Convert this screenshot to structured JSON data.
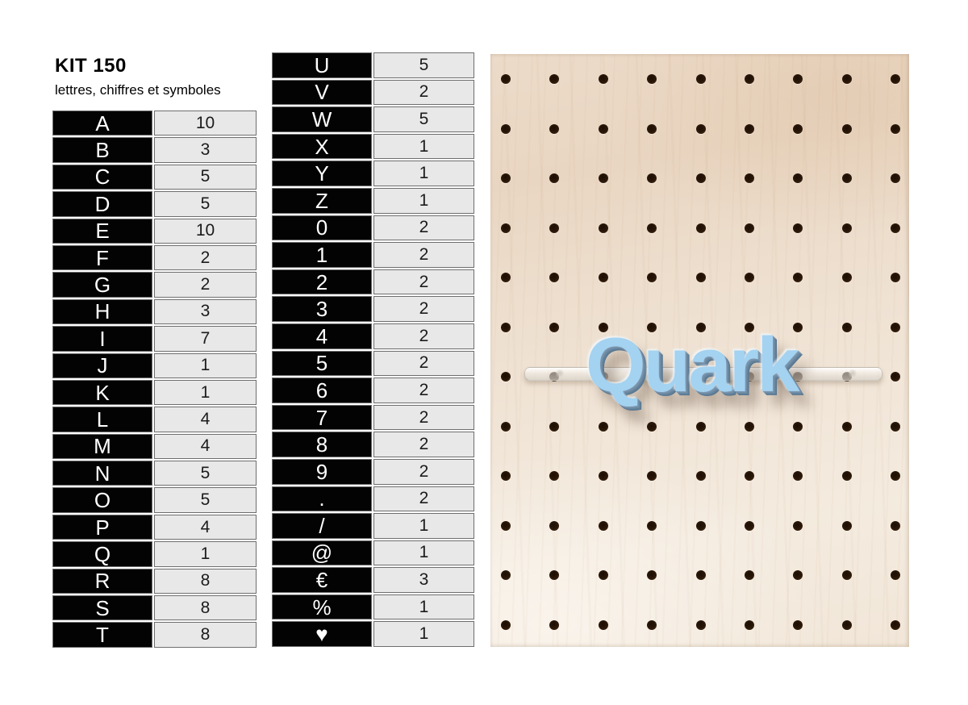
{
  "header": {
    "title": "KIT 150",
    "subtitle": "lettres, chiffres et symboles"
  },
  "table_left": {
    "rows": [
      {
        "symbol": "A",
        "qty": "10"
      },
      {
        "symbol": "B",
        "qty": "3"
      },
      {
        "symbol": "C",
        "qty": "5"
      },
      {
        "symbol": "D",
        "qty": "5"
      },
      {
        "symbol": "E",
        "qty": "10"
      },
      {
        "symbol": "F",
        "qty": "2"
      },
      {
        "symbol": "G",
        "qty": "2"
      },
      {
        "symbol": "H",
        "qty": "3"
      },
      {
        "symbol": "I",
        "qty": "7"
      },
      {
        "symbol": "J",
        "qty": "1"
      },
      {
        "symbol": "K",
        "qty": "1"
      },
      {
        "symbol": "L",
        "qty": "4"
      },
      {
        "symbol": "M",
        "qty": "4"
      },
      {
        "symbol": "N",
        "qty": "5"
      },
      {
        "symbol": "O",
        "qty": "5"
      },
      {
        "symbol": "P",
        "qty": "4"
      },
      {
        "symbol": "Q",
        "qty": "1"
      },
      {
        "symbol": "R",
        "qty": "8"
      },
      {
        "symbol": "S",
        "qty": "8"
      },
      {
        "symbol": "T",
        "qty": "8"
      }
    ]
  },
  "table_middle": {
    "rows": [
      {
        "symbol": "U",
        "qty": "5"
      },
      {
        "symbol": "V",
        "qty": "2"
      },
      {
        "symbol": "W",
        "qty": "5"
      },
      {
        "symbol": "X",
        "qty": "1"
      },
      {
        "symbol": "Y",
        "qty": "1"
      },
      {
        "symbol": "Z",
        "qty": "1"
      },
      {
        "symbol": "0",
        "qty": "2"
      },
      {
        "symbol": "1",
        "qty": "2"
      },
      {
        "symbol": "2",
        "qty": "2"
      },
      {
        "symbol": "3",
        "qty": "2"
      },
      {
        "symbol": "4",
        "qty": "2"
      },
      {
        "symbol": "5",
        "qty": "2"
      },
      {
        "symbol": "6",
        "qty": "2"
      },
      {
        "symbol": "7",
        "qty": "2"
      },
      {
        "symbol": "8",
        "qty": "2"
      },
      {
        "symbol": "9",
        "qty": "2"
      },
      {
        "symbol": ".",
        "qty": "2"
      },
      {
        "symbol": "/",
        "qty": "1"
      },
      {
        "symbol": "@",
        "qty": "1"
      },
      {
        "symbol": "€",
        "qty": "3"
      },
      {
        "symbol": "%",
        "qty": "1"
      },
      {
        "symbol": "♥",
        "qty": "1"
      }
    ]
  },
  "photo": {
    "label_text": "Quark",
    "description": "wooden pegboard with clear acrylic rail holding blue letters",
    "grid": {
      "rows": 12,
      "cols": 9
    },
    "colors": {
      "wood": "#ecdbc9",
      "hole": "#2a1708",
      "label_fill": "#a4d2f1",
      "label_shadow": "#5f7b96",
      "rail": "#f2efe9",
      "cell_black": "#030303",
      "cell_gray": "#e8e8e8"
    }
  }
}
